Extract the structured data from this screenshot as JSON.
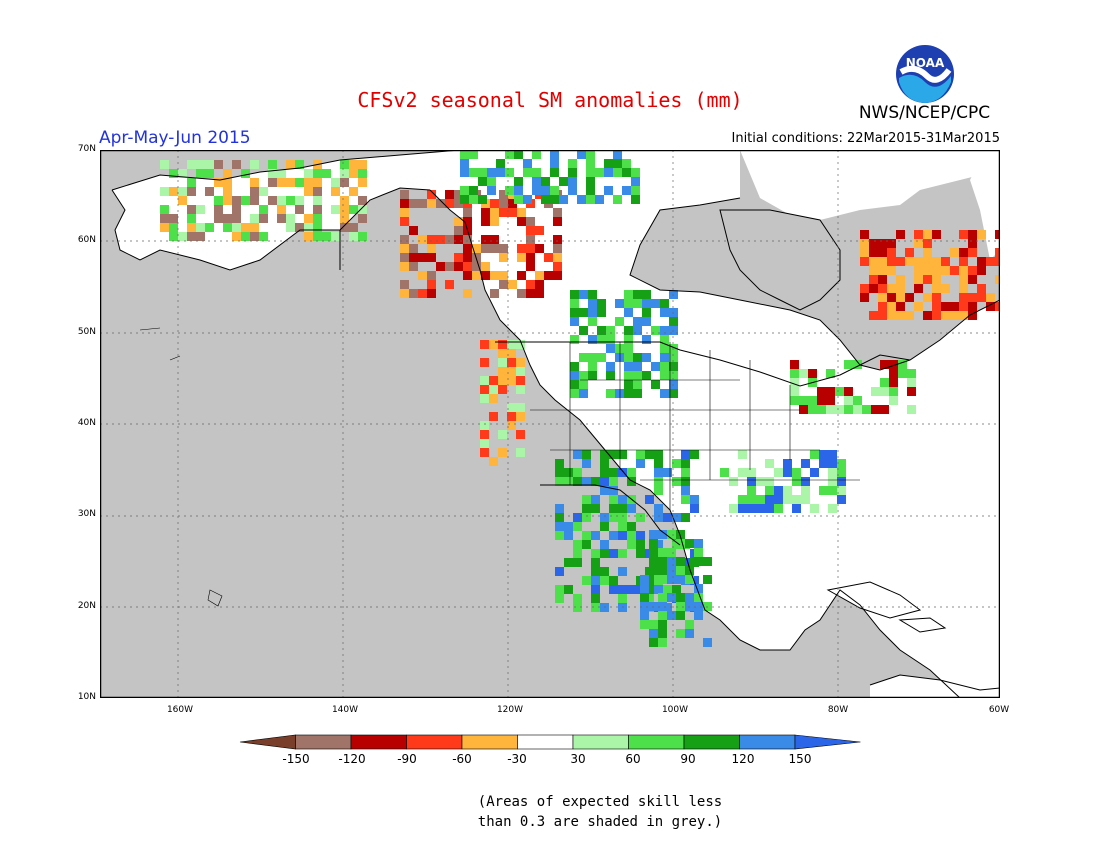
{
  "header": {
    "title": "CFSv2 seasonal SM anomalies (mm)",
    "agency": "NWS/NCEP/CPC",
    "logo_text": "NOAA",
    "season": "Apr-May-Jun 2015",
    "initial_conditions": "Initial conditions: 22Mar2015-31Mar2015"
  },
  "map": {
    "lat_labels": [
      "70N",
      "60N",
      "50N",
      "40N",
      "30N",
      "20N",
      "10N"
    ],
    "lon_labels": [
      "160W",
      "140W",
      "120W",
      "100W",
      "80W",
      "60W"
    ],
    "colors": {
      "ocean": "#c4c4c4",
      "land": "#ffffff",
      "low_skill": "#c0c0c0"
    }
  },
  "legend": {
    "labels": [
      "-150",
      "-120",
      "-90",
      "-60",
      "-30",
      "30",
      "60",
      "90",
      "120",
      "150"
    ],
    "colors": [
      "#7a3f2a",
      "#a07468",
      "#b80000",
      "#ff3a1a",
      "#ffb43c",
      "#ffffff",
      "#aaf5a8",
      "#4de04a",
      "#16a016",
      "#3a8ae8",
      "#2b65e8"
    ]
  },
  "note": {
    "line1": "(Areas of expected skill less",
    "line2": "than 0.3 are shaded in grey.)"
  }
}
